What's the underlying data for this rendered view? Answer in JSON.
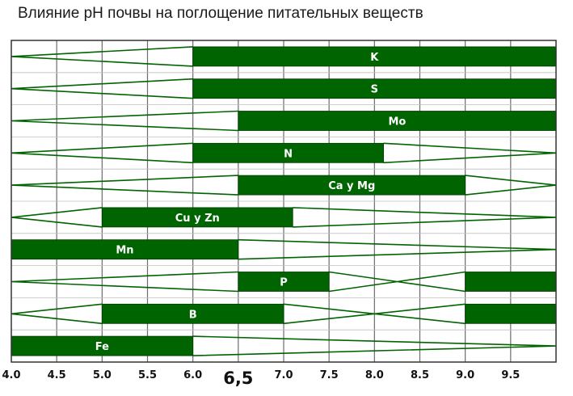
{
  "title": "Влияние pH почвы на поглощение питательных веществ",
  "chart_data": {
    "type": "bar",
    "xlim": [
      4.0,
      10.0
    ],
    "x_ticks": [
      {
        "value": 4.0,
        "label": "4.0"
      },
      {
        "value": 4.5,
        "label": "4.5"
      },
      {
        "value": 5.0,
        "label": "5.0"
      },
      {
        "value": 5.5,
        "label": "5.5"
      },
      {
        "value": 6.0,
        "label": "6.0"
      },
      {
        "value": 6.5,
        "label": "6,5",
        "major": true
      },
      {
        "value": 7.0,
        "label": "7.0"
      },
      {
        "value": 7.5,
        "label": "7.5"
      },
      {
        "value": 8.0,
        "label": "8.0"
      },
      {
        "value": 8.5,
        "label": "8.5"
      },
      {
        "value": 9.0,
        "label": "9.0"
      },
      {
        "value": 9.5,
        "label": "9.5"
      }
    ],
    "grid": true,
    "colors": {
      "bar": "#006400",
      "grid": "#6b6b6b",
      "frame": "#333333",
      "label": "#ffffff"
    },
    "rows": [
      {
        "label": "K",
        "bars": [
          {
            "from": 6.0,
            "to": 10.0
          }
        ]
      },
      {
        "label": "S",
        "bars": [
          {
            "from": 6.0,
            "to": 10.0
          }
        ]
      },
      {
        "label": "Mo",
        "bars": [
          {
            "from": 6.5,
            "to": 10.0
          }
        ]
      },
      {
        "label": "N",
        "bars": [
          {
            "from": 6.0,
            "to": 8.1
          }
        ]
      },
      {
        "label": "Ca y Mg",
        "bars": [
          {
            "from": 6.5,
            "to": 9.0
          }
        ]
      },
      {
        "label": "Cu y Zn",
        "bars": [
          {
            "from": 5.0,
            "to": 7.1
          }
        ]
      },
      {
        "label": "Mn",
        "bars": [
          {
            "from": 4.0,
            "to": 6.5
          }
        ]
      },
      {
        "label": "P",
        "bars": [
          {
            "from": 6.5,
            "to": 7.5
          },
          {
            "from": 9.0,
            "to": 10.0
          }
        ]
      },
      {
        "label": "B",
        "bars": [
          {
            "from": 5.0,
            "to": 7.0
          },
          {
            "from": 9.0,
            "to": 10.0
          }
        ]
      },
      {
        "label": "Fe",
        "bars": [
          {
            "from": 4.0,
            "to": 6.0
          }
        ]
      }
    ]
  }
}
